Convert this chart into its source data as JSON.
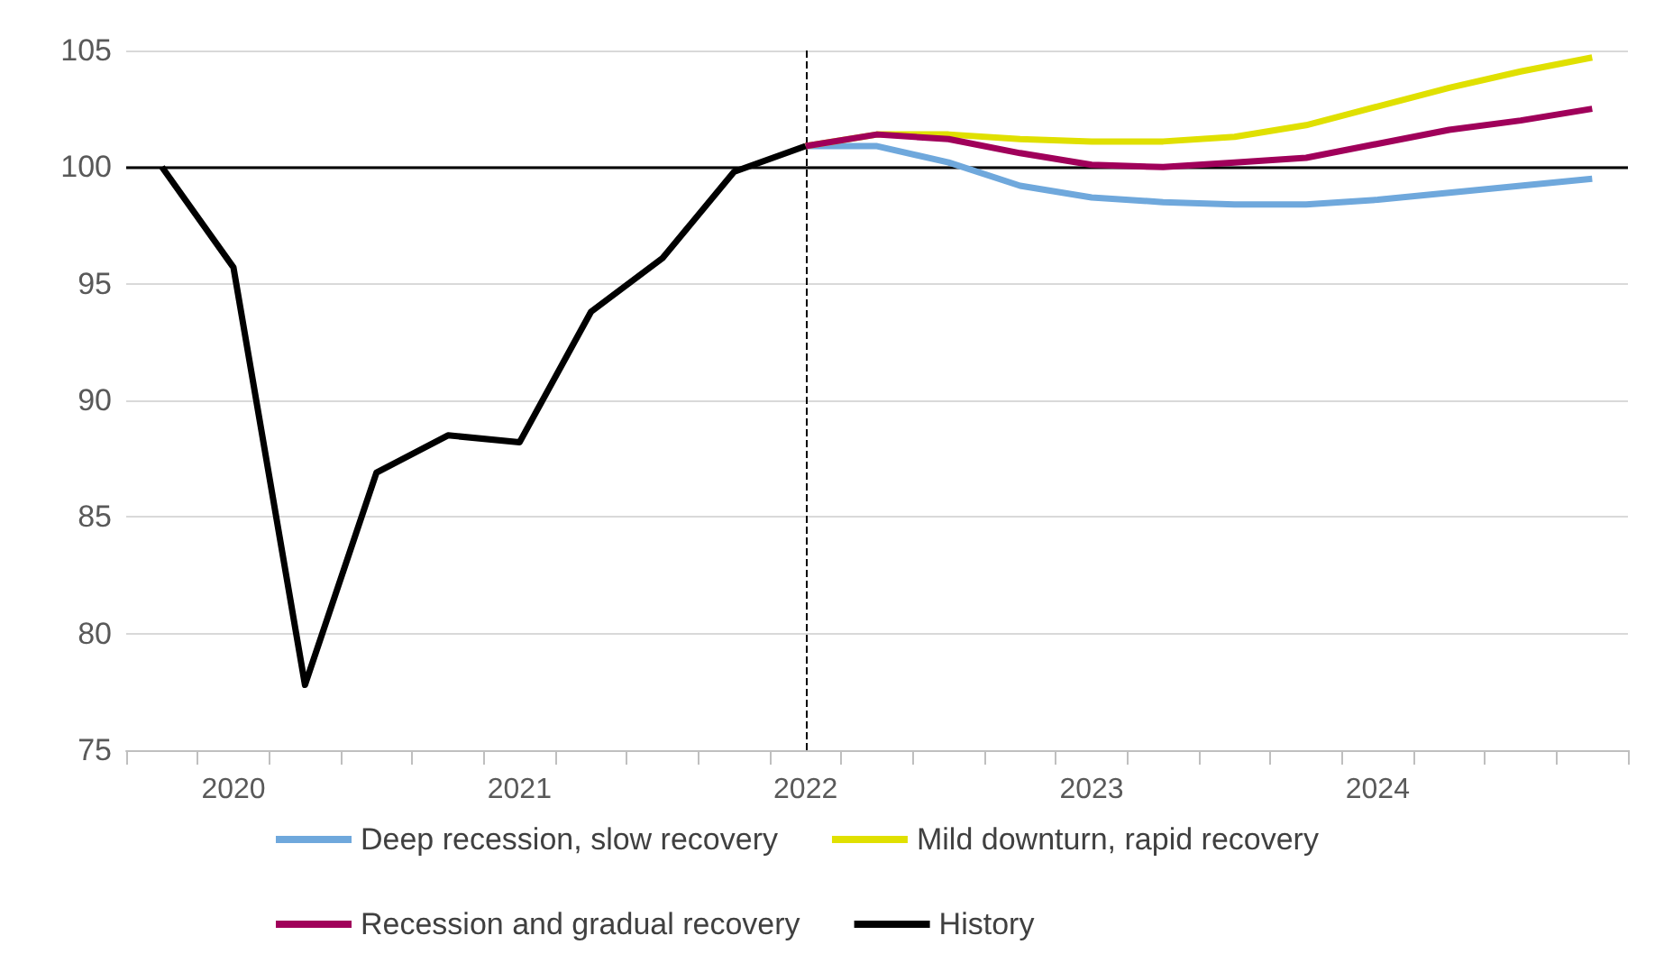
{
  "chart_data": {
    "type": "line",
    "categories": [
      null,
      "2020",
      null,
      null,
      null,
      "2021",
      null,
      null,
      null,
      "2022",
      null,
      null,
      null,
      "2023",
      null,
      null,
      null,
      "2024",
      null,
      null,
      null
    ],
    "ylim": [
      75,
      105
    ],
    "yticks": [
      75,
      80,
      85,
      90,
      95,
      100,
      105
    ],
    "grid": "y",
    "legend": "bottom",
    "marker": "none",
    "series": [
      {
        "name": "Deep recession, slow recovery",
        "color": "#6fa8dc",
        "values": [
          null,
          null,
          null,
          null,
          null,
          null,
          null,
          null,
          null,
          100.9,
          100.9,
          100.2,
          99.2,
          98.7,
          98.5,
          98.4,
          98.4,
          98.6,
          98.9,
          99.2,
          99.5
        ]
      },
      {
        "name": "Mild downturn, rapid recovery",
        "color": "#e0e000",
        "values": [
          null,
          null,
          null,
          null,
          null,
          null,
          null,
          null,
          null,
          100.9,
          101.4,
          101.4,
          101.2,
          101.1,
          101.1,
          101.3,
          101.8,
          102.6,
          103.4,
          104.1,
          104.7
        ]
      },
      {
        "name": "Recession and gradual recovery",
        "color": "#a0005a",
        "values": [
          null,
          null,
          null,
          null,
          null,
          null,
          null,
          null,
          null,
          100.9,
          101.4,
          101.2,
          100.6,
          100.1,
          100.0,
          100.2,
          100.4,
          101.0,
          101.6,
          102.0,
          102.5
        ]
      },
      {
        "name": "History",
        "color": "#000000",
        "values": [
          100,
          95.7,
          77.8,
          86.9,
          88.5,
          88.2,
          93.8,
          96.1,
          99.8,
          100.9,
          null,
          null,
          null,
          null,
          null,
          null,
          null,
          null,
          null,
          null,
          null
        ]
      }
    ],
    "ref_lines": [
      {
        "axis": "x",
        "value": "2022",
        "line_style": "dashed",
        "color": "#000000"
      },
      {
        "axis": "y",
        "value": 100,
        "line_style": "solid",
        "color": "#000000"
      }
    ]
  }
}
